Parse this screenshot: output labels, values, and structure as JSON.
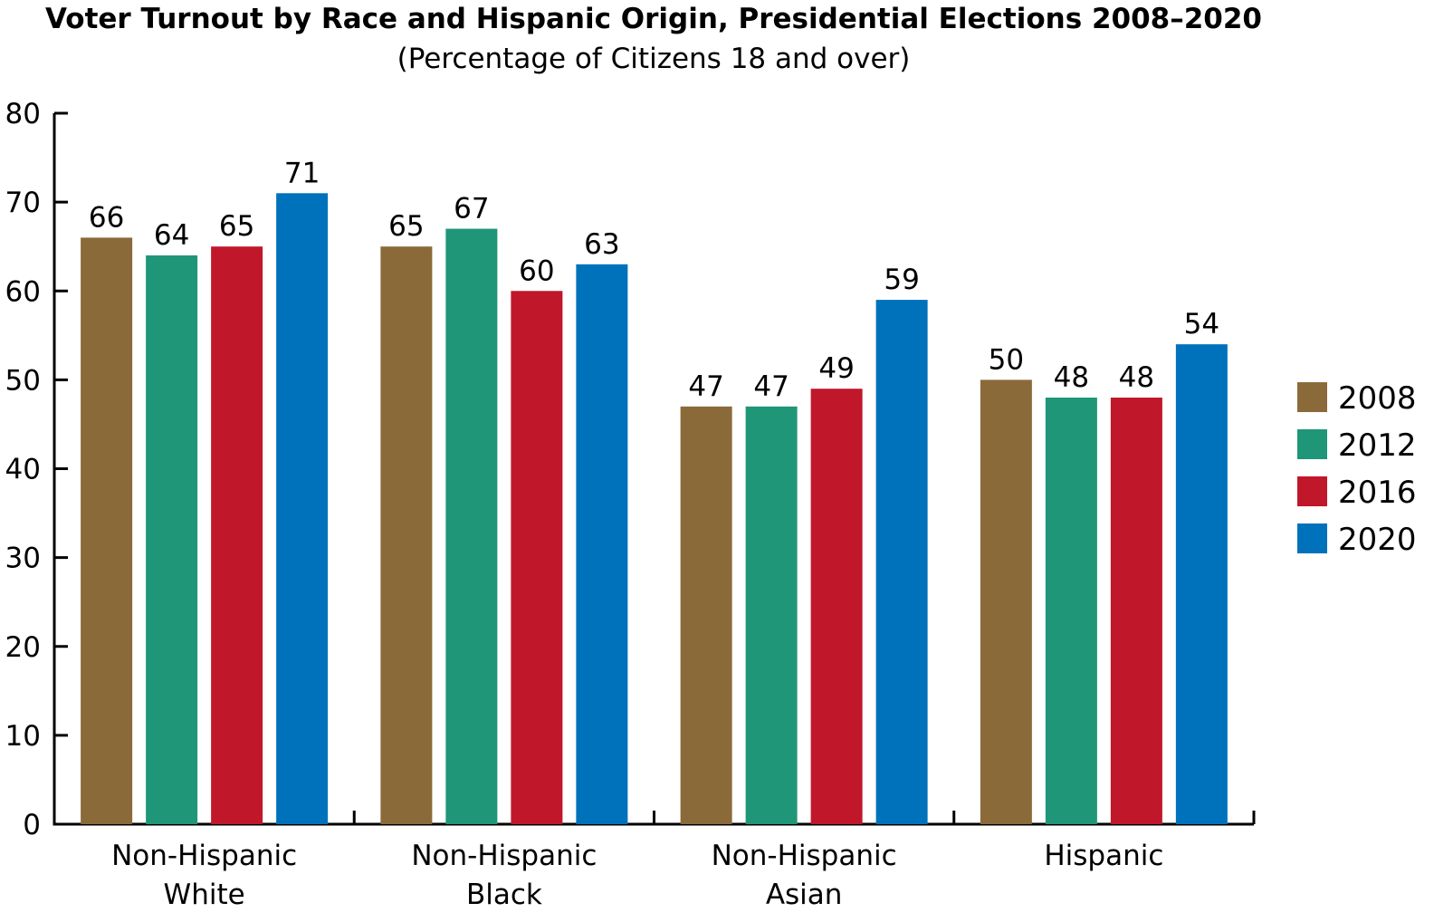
{
  "chart_data": {
    "type": "bar",
    "title": "Voter Turnout by Race and Hispanic Origin, Presidential Elections 2008–2020",
    "subtitle": "(Percentage of Citizens 18 and over)",
    "xlabel": "",
    "ylabel": "",
    "ylim": [
      0,
      80
    ],
    "yticks": [
      "0",
      "10",
      "20",
      "30",
      "40",
      "50",
      "60",
      "70",
      "80"
    ],
    "grid": false,
    "legend_position": "right",
    "categories": [
      [
        "Non-Hispanic",
        "White"
      ],
      [
        "Non-Hispanic",
        "Black"
      ],
      [
        "Non-Hispanic",
        "Asian"
      ],
      [
        "Hispanic"
      ]
    ],
    "series": [
      {
        "name": "2008",
        "color": "#8B6A3A",
        "values": [
          66,
          65,
          47,
          50
        ]
      },
      {
        "name": "2012",
        "color": "#1F9677",
        "values": [
          64,
          67,
          47,
          48
        ]
      },
      {
        "name": "2016",
        "color": "#C0172B",
        "values": [
          65,
          60,
          49,
          48
        ]
      },
      {
        "name": "2020",
        "color": "#0072BB",
        "values": [
          71,
          63,
          59,
          54
        ]
      }
    ]
  }
}
